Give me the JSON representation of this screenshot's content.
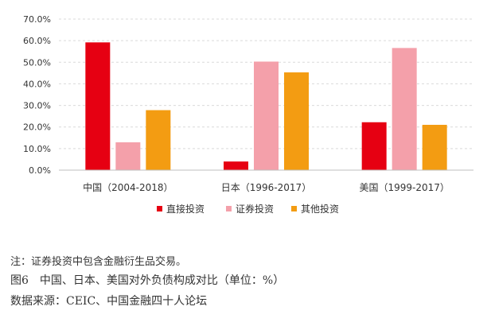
{
  "chart_data": {
    "type": "bar",
    "categories": [
      "中国（2004-2018）",
      "日本（1996-2017）",
      "美国（1999-2017）"
    ],
    "series": [
      {
        "name": "直接投资",
        "color": "#e60012",
        "values": [
          59.2,
          4.0,
          22.2
        ]
      },
      {
        "name": "证券投资",
        "color": "#f4a0aa",
        "values": [
          12.9,
          50.3,
          56.6
        ]
      },
      {
        "name": "其他投资",
        "color": "#f39c12",
        "values": [
          27.8,
          45.3,
          21.0
        ]
      }
    ],
    "ylim": [
      0,
      70
    ],
    "yticks": [
      0,
      10,
      20,
      30,
      40,
      50,
      60,
      70
    ],
    "ytick_labels": [
      "0.0%",
      "10.0%",
      "20.0%",
      "30.0%",
      "40.0%",
      "50.0%",
      "60.0%",
      "70.0%"
    ],
    "grid": true,
    "legend": "bottom"
  },
  "footnotes": {
    "note": "注：证券投资中包含金融衍生品交易。",
    "caption": "图6　中国、日本、美国对外负债构成对比（单位：%）",
    "source": "数据来源：CEIC、中国金融四十人论坛"
  }
}
